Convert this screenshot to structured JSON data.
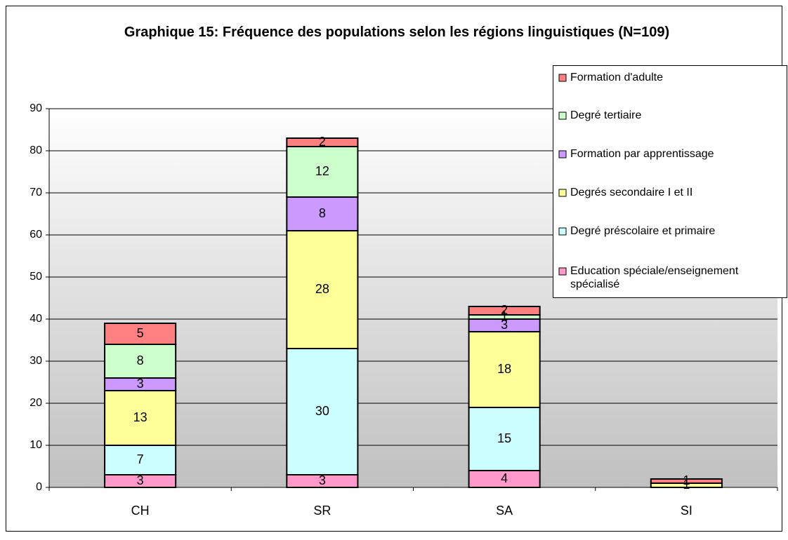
{
  "chart_data": {
    "type": "stacked_bar",
    "title": "Graphique 15: Fréquence des populations selon les régions linguistiques (N=109)",
    "categories": [
      "CH",
      "SR",
      "SA",
      "SI"
    ],
    "series": [
      {
        "name": "Education spéciale/enseignement spécialisé",
        "color": "#ff99cc",
        "values": [
          3,
          3,
          4,
          0
        ]
      },
      {
        "name": "Degré préscolaire et primaire",
        "color": "#ccffff",
        "values": [
          7,
          30,
          15,
          0
        ]
      },
      {
        "name": "Degrés secondaire I et II",
        "color": "#ffff99",
        "values": [
          13,
          28,
          18,
          1
        ]
      },
      {
        "name": "Formation par apprentissage",
        "color": "#cc99ff",
        "values": [
          3,
          8,
          3,
          0
        ]
      },
      {
        "name": "Degré tertiaire",
        "color": "#ccffcc",
        "values": [
          8,
          12,
          1,
          0
        ]
      },
      {
        "name": "Formation d'adulte",
        "color": "#ff8080",
        "values": [
          5,
          2,
          2,
          1
        ]
      }
    ],
    "ylim": [
      0,
      90
    ],
    "yticks": [
      0,
      10,
      20,
      30,
      40,
      50,
      60,
      70,
      80,
      90
    ],
    "grid": true,
    "legend": "right"
  }
}
